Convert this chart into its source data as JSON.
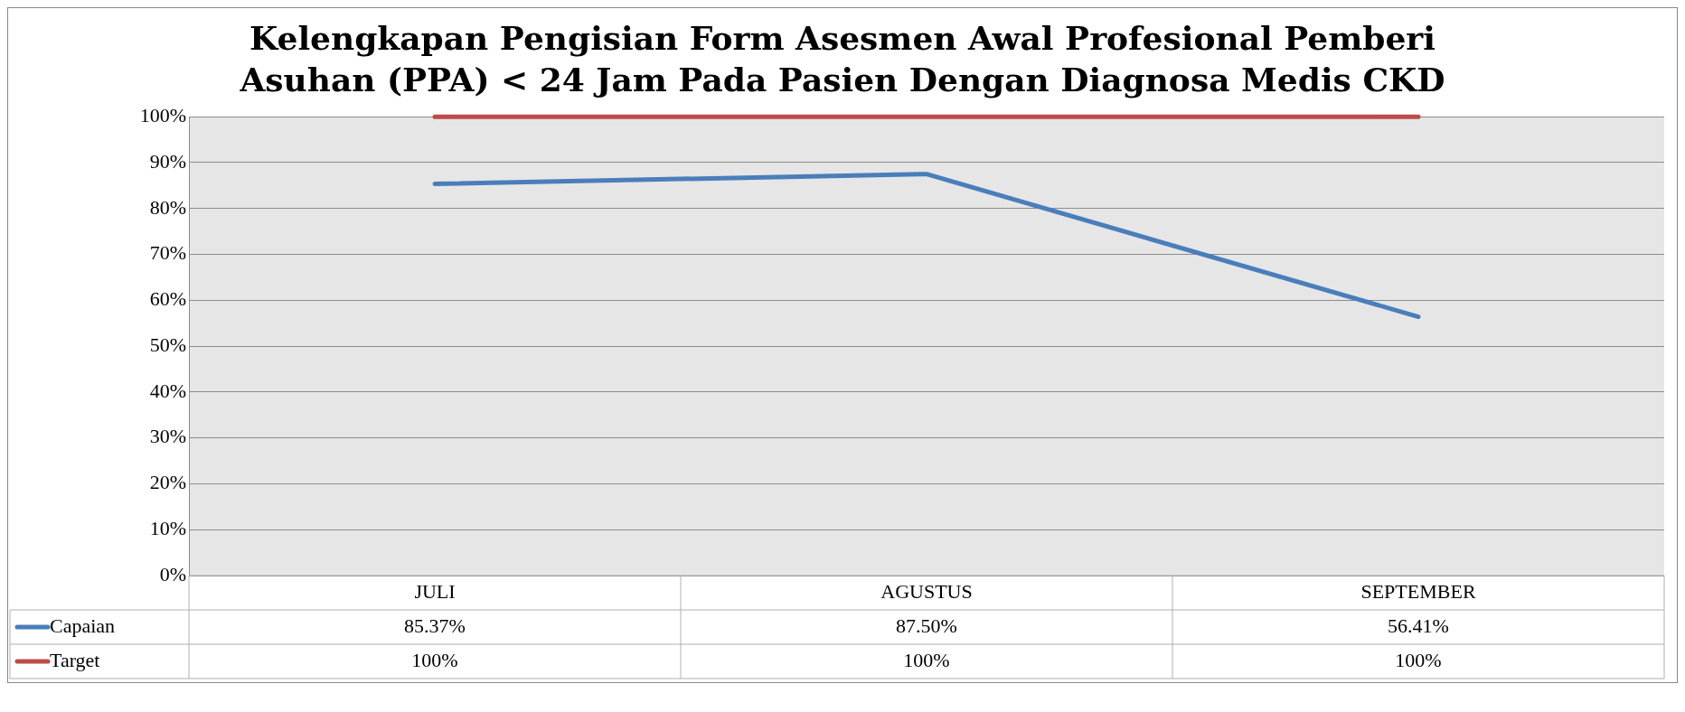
{
  "chart_data": {
    "type": "line",
    "title": "Kelengkapan Pengisian Form Asesmen Awal Profesional Pemberi Asuhan (PPA) < 24 Jam Pada Pasien Dengan Diagnosa Medis CKD",
    "categories": [
      "JULI",
      "AGUSTUS",
      "SEPTEMBER"
    ],
    "series": [
      {
        "name": "Capaian",
        "color": "#4a7ebb",
        "values": [
          85.37,
          87.5,
          56.41
        ],
        "value_labels": [
          "85.37%",
          "87.50%",
          "56.41%"
        ]
      },
      {
        "name": "Target",
        "color": "#be4b48",
        "values": [
          100,
          100,
          100
        ],
        "value_labels": [
          "100%",
          "100%",
          "100%"
        ]
      }
    ],
    "ylim": [
      0,
      100
    ],
    "yticks": [
      {
        "value": 0,
        "label": "0%"
      },
      {
        "value": 10,
        "label": "10%"
      },
      {
        "value": 20,
        "label": "20%"
      },
      {
        "value": 30,
        "label": "30%"
      },
      {
        "value": 40,
        "label": "40%"
      },
      {
        "value": 50,
        "label": "50%"
      },
      {
        "value": 60,
        "label": "60%"
      },
      {
        "value": 70,
        "label": "70%"
      },
      {
        "value": 80,
        "label": "80%"
      },
      {
        "value": 90,
        "label": "90%"
      },
      {
        "value": 100,
        "label": "100%"
      }
    ],
    "grid": "y",
    "legend": "bottom",
    "marker": "none",
    "line_style": "solid"
  }
}
